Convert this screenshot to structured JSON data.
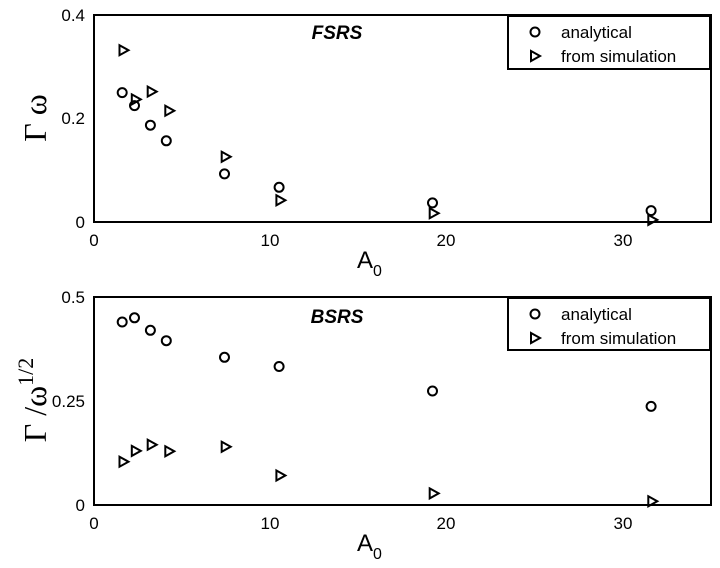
{
  "chart_data": [
    {
      "type": "scatter",
      "title": "FSRS",
      "xlabel": "A",
      "xlabel_sub": "0",
      "ylabel": "Γ ω",
      "xlim": [
        0,
        35
      ],
      "ylim": [
        0,
        0.4
      ],
      "xticks": [
        "0",
        "10",
        "20",
        "30"
      ],
      "yticks": [
        "0",
        "0.2",
        "0.4"
      ],
      "legend_position": "top-right",
      "series": [
        {
          "name": "analytical",
          "marker": "circle",
          "points": [
            [
              1.6,
              0.25
            ],
            [
              2.3,
              0.225
            ],
            [
              3.2,
              0.187
            ],
            [
              4.1,
              0.157
            ],
            [
              7.4,
              0.093
            ],
            [
              10.5,
              0.067
            ],
            [
              19.2,
              0.037
            ],
            [
              31.6,
              0.022
            ]
          ]
        },
        {
          "name": "from simulation",
          "marker": "triangle-right",
          "points": [
            [
              1.7,
              0.332
            ],
            [
              2.4,
              0.237
            ],
            [
              3.3,
              0.252
            ],
            [
              4.3,
              0.215
            ],
            [
              7.5,
              0.126
            ],
            [
              10.6,
              0.042
            ],
            [
              19.3,
              0.017
            ],
            [
              31.7,
              0.004
            ]
          ]
        }
      ]
    },
    {
      "type": "scatter",
      "title": "BSRS",
      "xlabel": "A",
      "xlabel_sub": "0",
      "ylabel": "Γ /ω",
      "ylabel_sup": "1/2",
      "xlim": [
        0,
        35
      ],
      "ylim": [
        0,
        0.5
      ],
      "xticks": [
        "0",
        "10",
        "20",
        "30"
      ],
      "yticks": [
        "0",
        "0.25",
        "0.5"
      ],
      "legend_position": "top-right",
      "series": [
        {
          "name": "analytical",
          "marker": "circle",
          "points": [
            [
              1.6,
              0.44
            ],
            [
              2.3,
              0.45
            ],
            [
              3.2,
              0.42
            ],
            [
              4.1,
              0.395
            ],
            [
              7.4,
              0.355
            ],
            [
              10.5,
              0.333
            ],
            [
              19.2,
              0.274
            ],
            [
              31.6,
              0.237
            ]
          ]
        },
        {
          "name": "from simulation",
          "marker": "triangle-right",
          "points": [
            [
              1.7,
              0.104
            ],
            [
              2.4,
              0.13
            ],
            [
              3.3,
              0.145
            ],
            [
              4.3,
              0.129
            ],
            [
              7.5,
              0.14
            ],
            [
              10.6,
              0.071
            ],
            [
              19.3,
              0.028
            ],
            [
              31.7,
              0.009
            ]
          ]
        }
      ]
    }
  ]
}
